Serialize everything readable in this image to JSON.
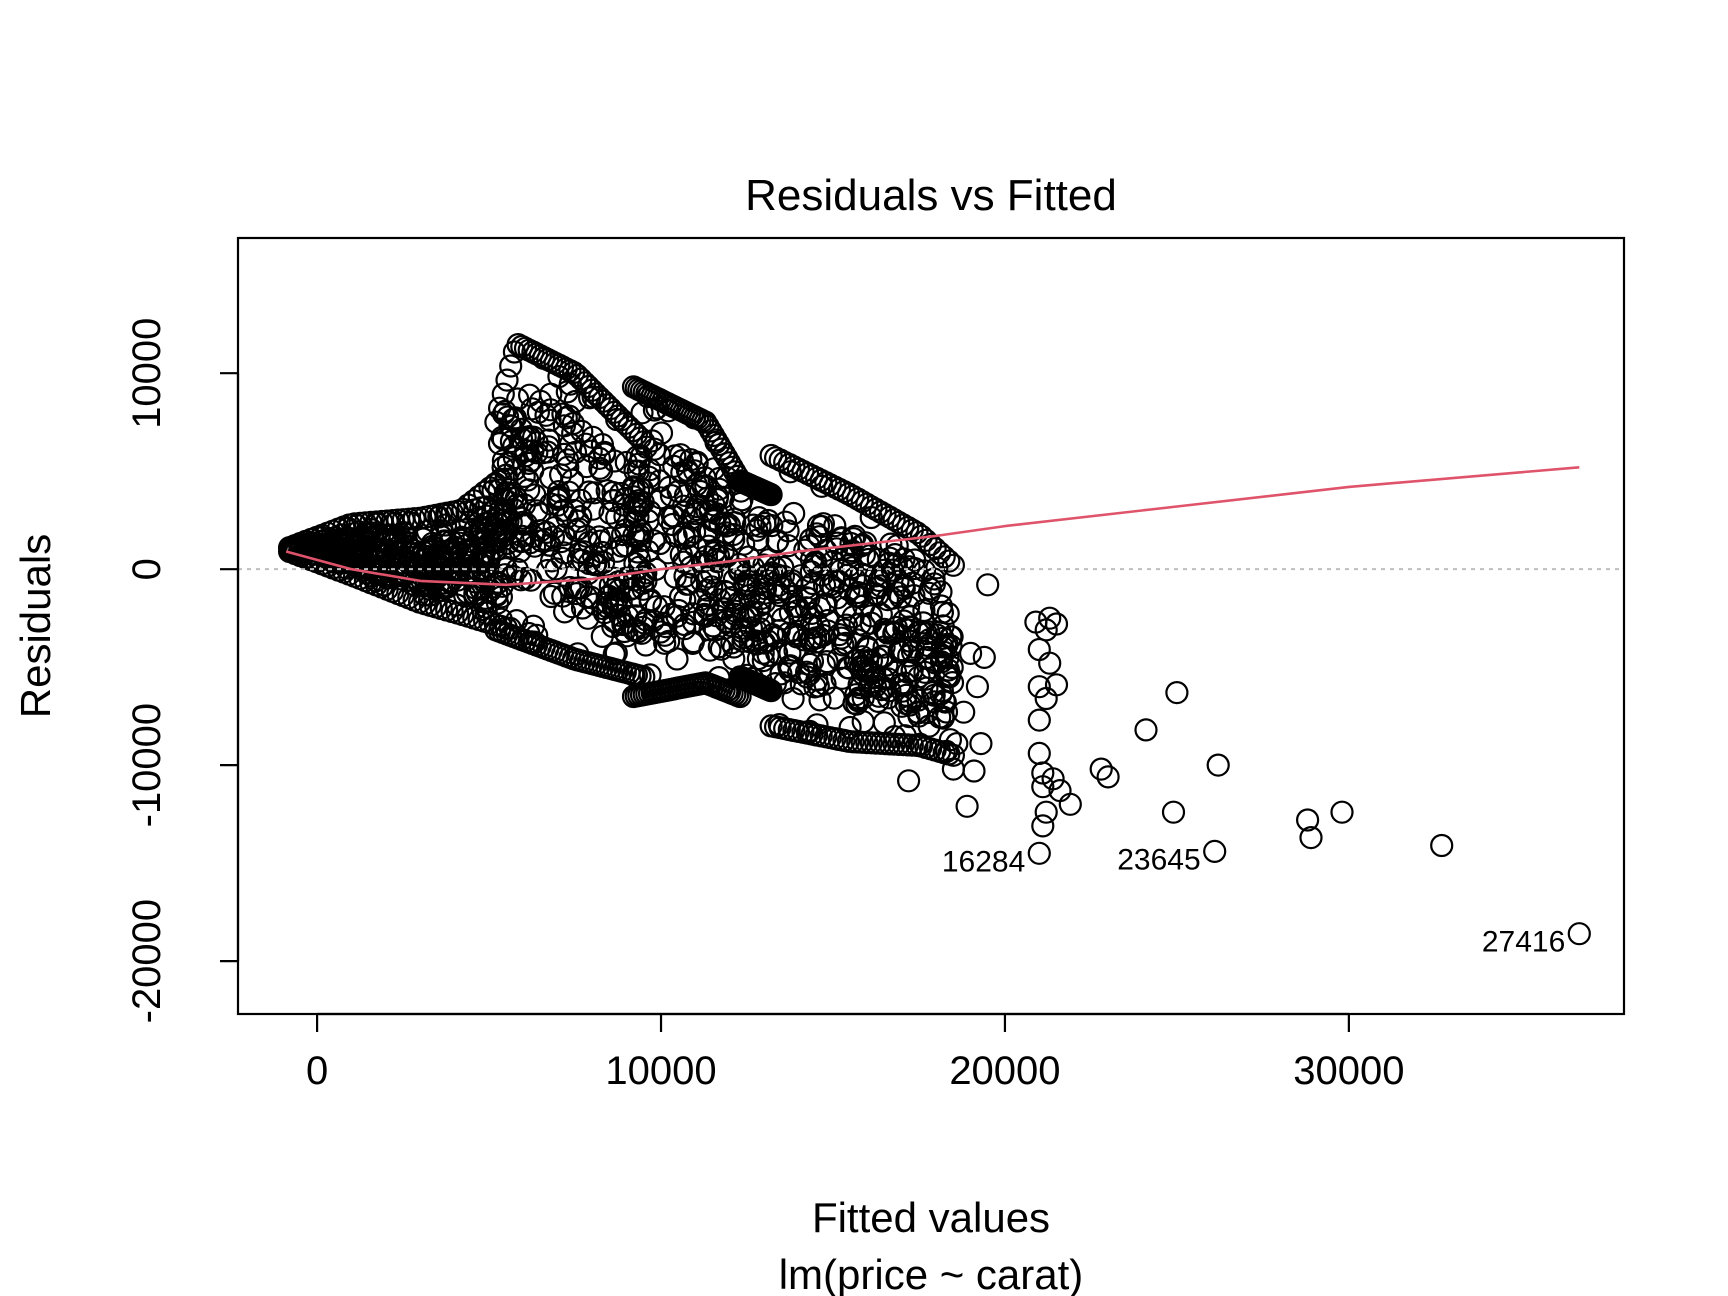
{
  "chart_data": {
    "type": "scatter",
    "title": "Residuals vs Fitted",
    "xlabel": "Fitted values",
    "xlabel_sub": "lm(price ~ carat)",
    "ylabel": "Residuals",
    "xlim": [
      -2300,
      38000
    ],
    "ylim": [
      -22700,
      16900
    ],
    "xticks": [
      0,
      10000,
      20000,
      30000
    ],
    "yticks": [
      -20000,
      -10000,
      0,
      10000
    ],
    "xtick_labels": [
      "0",
      "10000",
      "20000",
      "30000"
    ],
    "ytick_labels": [
      "-20000",
      "-10000",
      "0",
      "10000"
    ],
    "grid": false,
    "reference_line": {
      "y": 0,
      "style": "dotted",
      "color": "#bebebe"
    },
    "colors": {
      "points": "#000000",
      "smoother": "#df536b",
      "reference": "#bebebe"
    },
    "dense_regions": [
      {
        "x_range": [
          -800,
          5500
        ],
        "resid_upper": [
          [
            -800,
            1100
          ],
          [
            1000,
            2300
          ],
          [
            3000,
            2600
          ],
          [
            4200,
            3000
          ],
          [
            5500,
            4800
          ]
        ],
        "resid_lower": [
          [
            -800,
            900
          ],
          [
            1000,
            -300
          ],
          [
            3000,
            -1700
          ],
          [
            4200,
            -2300
          ],
          [
            5500,
            -3000
          ]
        ]
      },
      {
        "x_range": [
          5200,
          9500
        ],
        "resid_upper": [
          [
            5200,
            7500
          ],
          [
            5800,
            11500
          ],
          [
            7500,
            10000
          ],
          [
            9500,
            6500
          ]
        ],
        "resid_lower": [
          [
            5200,
            -3100
          ],
          [
            7500,
            -4600
          ],
          [
            9500,
            -5500
          ]
        ]
      },
      {
        "x_range": [
          9200,
          12300
        ],
        "resid_upper": [
          [
            9200,
            9300
          ],
          [
            11300,
            7500
          ],
          [
            12300,
            4500
          ]
        ],
        "resid_lower": [
          [
            9200,
            -6500
          ],
          [
            11300,
            -5800
          ],
          [
            12300,
            -6500
          ]
        ]
      },
      {
        "x_range": [
          12300,
          13200
        ],
        "resid_upper": [
          [
            12300,
            4500
          ],
          [
            13200,
            3800
          ]
        ],
        "resid_lower": [
          [
            12300,
            -5500
          ],
          [
            13200,
            -6200
          ]
        ]
      },
      {
        "x_range": [
          13200,
          18500
        ],
        "resid_upper": [
          [
            13200,
            5800
          ],
          [
            15500,
            3800
          ],
          [
            17500,
            1800
          ],
          [
            18500,
            200
          ]
        ],
        "resid_lower": [
          [
            13200,
            -8000
          ],
          [
            15500,
            -8800
          ],
          [
            17500,
            -9000
          ],
          [
            18500,
            -9500
          ]
        ]
      }
    ],
    "sparse_points": [
      [
        17000,
        -7000
      ],
      [
        17100,
        -8500
      ],
      [
        17200,
        -10800
      ],
      [
        17500,
        -7500
      ],
      [
        17900,
        -6300
      ],
      [
        18200,
        -7600
      ],
      [
        18500,
        -10200
      ],
      [
        18600,
        -8900
      ],
      [
        18800,
        -7300
      ],
      [
        18900,
        -12100
      ],
      [
        19100,
        -10300
      ],
      [
        19200,
        -6000
      ],
      [
        19300,
        -8900
      ],
      [
        19400,
        -4500
      ],
      [
        19500,
        -800
      ],
      [
        19000,
        -4300
      ],
      [
        18400,
        -5400
      ],
      [
        17800,
        -3600
      ],
      [
        20900,
        -2700
      ],
      [
        21000,
        -4100
      ],
      [
        21000,
        -6000
      ],
      [
        21000,
        -7700
      ],
      [
        21000,
        -9400
      ],
      [
        21100,
        -10400
      ],
      [
        21100,
        -11100
      ],
      [
        21100,
        -13100
      ],
      [
        21200,
        -12400
      ],
      [
        21200,
        -3100
      ],
      [
        21200,
        -6600
      ],
      [
        21300,
        -2500
      ],
      [
        21300,
        -4800
      ],
      [
        21400,
        -10700
      ],
      [
        21500,
        -5900
      ],
      [
        21500,
        -2800
      ],
      [
        21600,
        -11300
      ],
      [
        21900,
        -12000
      ],
      [
        22800,
        -10200
      ],
      [
        23000,
        -10600
      ],
      [
        24100,
        -8200
      ],
      [
        24900,
        -12400
      ],
      [
        25000,
        -6300
      ],
      [
        26200,
        -10000
      ],
      [
        28800,
        -12800
      ],
      [
        28900,
        -13700
      ],
      [
        29800,
        -12400
      ],
      [
        32700,
        -14100
      ]
    ],
    "labeled_points": [
      {
        "label": "16284",
        "x": 21000,
        "y": -14500
      },
      {
        "label": "23645",
        "x": 26100,
        "y": -14400
      },
      {
        "label": "27416",
        "x": 36700,
        "y": -18600
      }
    ],
    "smoother": {
      "x": [
        -900,
        1000,
        3000,
        5500,
        8000,
        10000,
        12000,
        14000,
        16000,
        18000,
        20000,
        25000,
        30000,
        36700
      ],
      "y": [
        900,
        0,
        -600,
        -800,
        -500,
        0,
        400,
        900,
        1300,
        1700,
        2200,
        3200,
        4200,
        5200
      ]
    }
  }
}
